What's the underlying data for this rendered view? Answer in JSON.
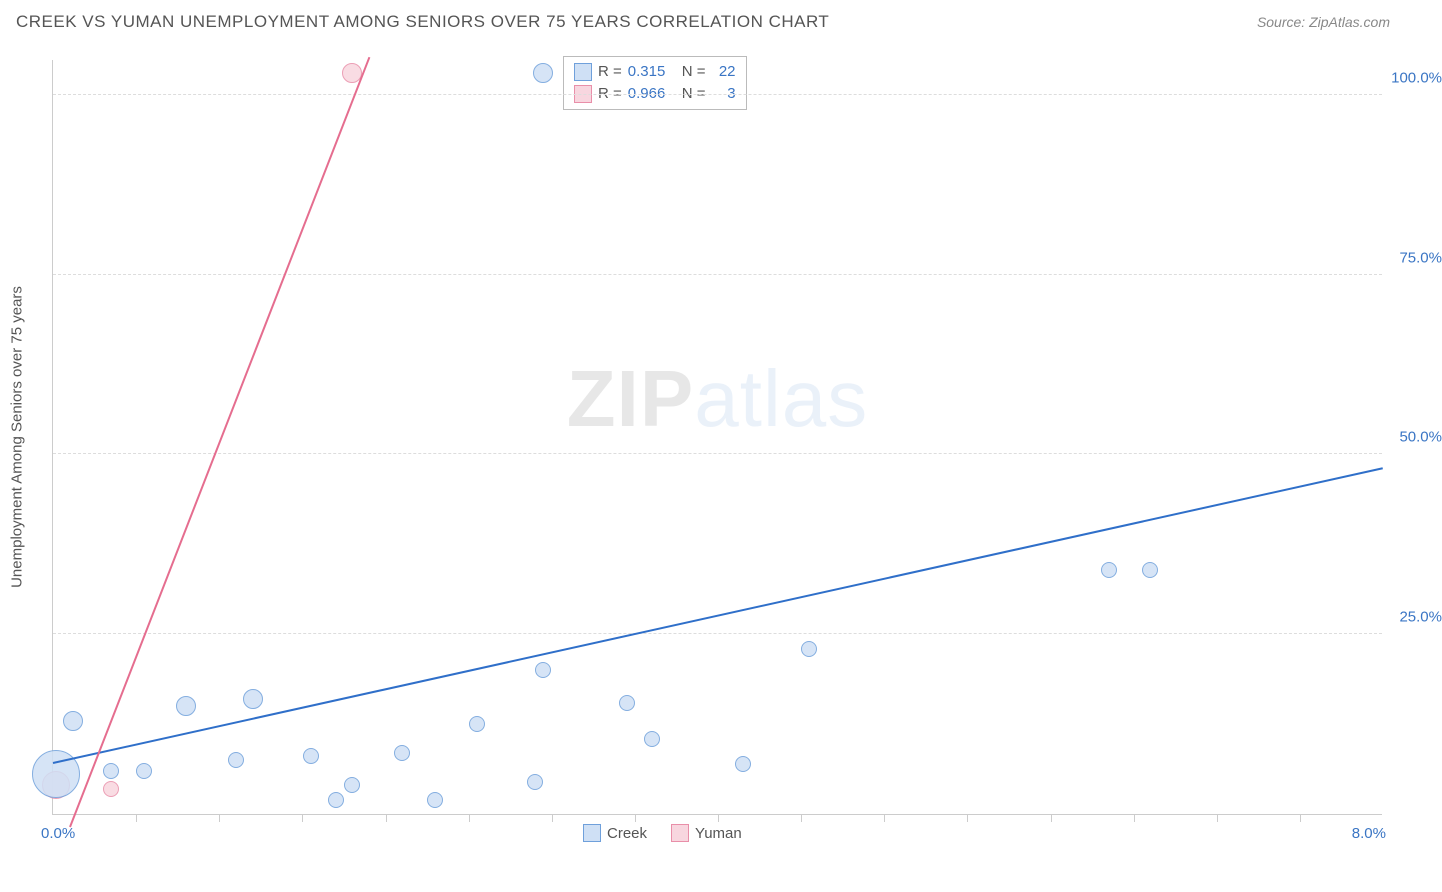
{
  "title": "CREEK VS YUMAN UNEMPLOYMENT AMONG SENIORS OVER 75 YEARS CORRELATION CHART",
  "source": "Source: ZipAtlas.com",
  "y_axis_title": "Unemployment Among Seniors over 75 years",
  "x_axis": {
    "min_label": "0.0%",
    "max_label": "8.0%",
    "min": 0.0,
    "max": 8.0,
    "tick_step": 0.5,
    "label_color": "#3a75c4"
  },
  "y_axis": {
    "min": 0,
    "max": 105,
    "ticks": [
      25.0,
      50.0,
      75.0,
      100.0
    ],
    "tick_labels": [
      "25.0%",
      "50.0%",
      "75.0%",
      "100.0%"
    ],
    "label_color": "#3a75c4"
  },
  "grid_color": "#dddddd",
  "series": {
    "creek": {
      "label": "Creek",
      "fill": "#cfe0f5",
      "stroke": "#6fa0db",
      "line_color": "#2f6fc9",
      "r_value": "0.315",
      "n_value": "22",
      "points": [
        {
          "x": 0.02,
          "y": 5.5,
          "r": 24
        },
        {
          "x": 0.12,
          "y": 13.0,
          "r": 10
        },
        {
          "x": 0.35,
          "y": 6.0,
          "r": 8
        },
        {
          "x": 0.55,
          "y": 6.0,
          "r": 8
        },
        {
          "x": 0.8,
          "y": 15.0,
          "r": 10
        },
        {
          "x": 1.1,
          "y": 7.5,
          "r": 8
        },
        {
          "x": 1.2,
          "y": 16.0,
          "r": 10
        },
        {
          "x": 1.55,
          "y": 8.0,
          "r": 8
        },
        {
          "x": 1.7,
          "y": 2.0,
          "r": 8
        },
        {
          "x": 1.8,
          "y": 4.0,
          "r": 8
        },
        {
          "x": 2.1,
          "y": 8.5,
          "r": 8
        },
        {
          "x": 2.3,
          "y": 2.0,
          "r": 8
        },
        {
          "x": 2.55,
          "y": 12.5,
          "r": 8
        },
        {
          "x": 2.9,
          "y": 4.5,
          "r": 8
        },
        {
          "x": 2.95,
          "y": 20.0,
          "r": 8
        },
        {
          "x": 2.95,
          "y": 103.0,
          "r": 10
        },
        {
          "x": 3.45,
          "y": 15.5,
          "r": 8
        },
        {
          "x": 3.6,
          "y": 10.5,
          "r": 8
        },
        {
          "x": 4.15,
          "y": 7.0,
          "r": 8
        },
        {
          "x": 4.55,
          "y": 23.0,
          "r": 8
        },
        {
          "x": 6.35,
          "y": 34.0,
          "r": 8
        },
        {
          "x": 6.6,
          "y": 34.0,
          "r": 8
        }
      ],
      "trend": {
        "x1": 0.0,
        "y1": 7.0,
        "x2": 8.0,
        "y2": 48.0,
        "width": 2
      }
    },
    "yuman": {
      "label": "Yuman",
      "fill": "#f8d6df",
      "stroke": "#e98fa9",
      "line_color": "#e56d8f",
      "r_value": "0.966",
      "n_value": "3",
      "points": [
        {
          "x": 0.02,
          "y": 4.0,
          "r": 14
        },
        {
          "x": 0.35,
          "y": 3.5,
          "r": 8
        },
        {
          "x": 1.8,
          "y": 103.0,
          "r": 10
        }
      ],
      "trend": {
        "x1": 0.1,
        "y1": -2.0,
        "x2": 1.9,
        "y2": 105.0,
        "width": 2
      }
    }
  },
  "legend_top": {
    "r_label": "R =",
    "n_label": "N ="
  },
  "watermark": {
    "bold": "ZIP",
    "light": "atlas"
  }
}
